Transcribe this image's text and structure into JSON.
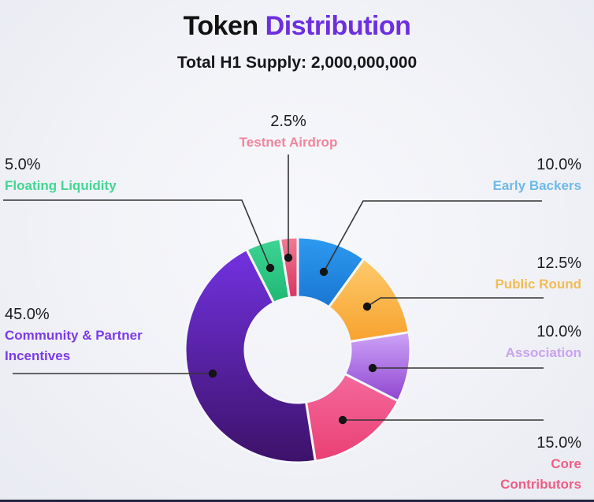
{
  "header": {
    "title_primary": "Token",
    "title_accent": "Distribution",
    "subtitle": "Total H1 Supply: 2,000,000,000"
  },
  "colors": {
    "accent": "#6D2FE0",
    "background": "#F1F2F7",
    "leader_line": "#333333",
    "leader_dot": "#141414",
    "percent_text": "#1C1C1E",
    "bottom_bar": "#23263F",
    "segment_gap": "#F5F6FA"
  },
  "chart_data": {
    "type": "pie",
    "variant": "donut",
    "title": "Token Distribution",
    "subtitle": "Total H1 Supply: 2,000,000,000",
    "total_supply": "2,000,000,000",
    "units": "percent",
    "start_angle_deg": 0,
    "direction": "clockwise",
    "legend_position": "around-chart-with-leader-lines",
    "segments": [
      {
        "name": "Early Backers",
        "value": 10.0,
        "percent_label": "10.0%",
        "gradient": [
          "#2D9AF0",
          "#1976D2"
        ],
        "label_color": "#6FB9E9",
        "label_side": "right"
      },
      {
        "name": "Public Round",
        "value": 12.5,
        "percent_label": "12.5%",
        "gradient": [
          "#FDCA6C",
          "#F7A22E"
        ],
        "label_color": "#F2BC55",
        "label_side": "right"
      },
      {
        "name": "Association",
        "value": 10.0,
        "percent_label": "10.0%",
        "gradient": [
          "#CDA4F8",
          "#8F45D0"
        ],
        "label_color": "#C9A2F2",
        "label_side": "right"
      },
      {
        "name": "Core Contributors",
        "value": 15.0,
        "percent_label": "15.0%",
        "gradient": [
          "#F4699B",
          "#EA3F74"
        ],
        "label_color": "#EE5E86",
        "label_side": "right"
      },
      {
        "name": "Community & Partner Incentives",
        "value": 45.0,
        "percent_label": "45.0%",
        "gradient": [
          "#7232E0",
          "#3D1269"
        ],
        "label_color": "#7B3BE8",
        "label_side": "left"
      },
      {
        "name": "Floating Liquidity",
        "value": 5.0,
        "percent_label": "5.0%",
        "gradient": [
          "#3ED494",
          "#1EB873"
        ],
        "label_color": "#43D693",
        "label_side": "left"
      },
      {
        "name": "Testnet Airdrop",
        "value": 2.5,
        "percent_label": "2.5%",
        "gradient": [
          "#F27C95",
          "#D63560"
        ],
        "label_color": "#F2849D",
        "label_side": "top"
      }
    ]
  }
}
